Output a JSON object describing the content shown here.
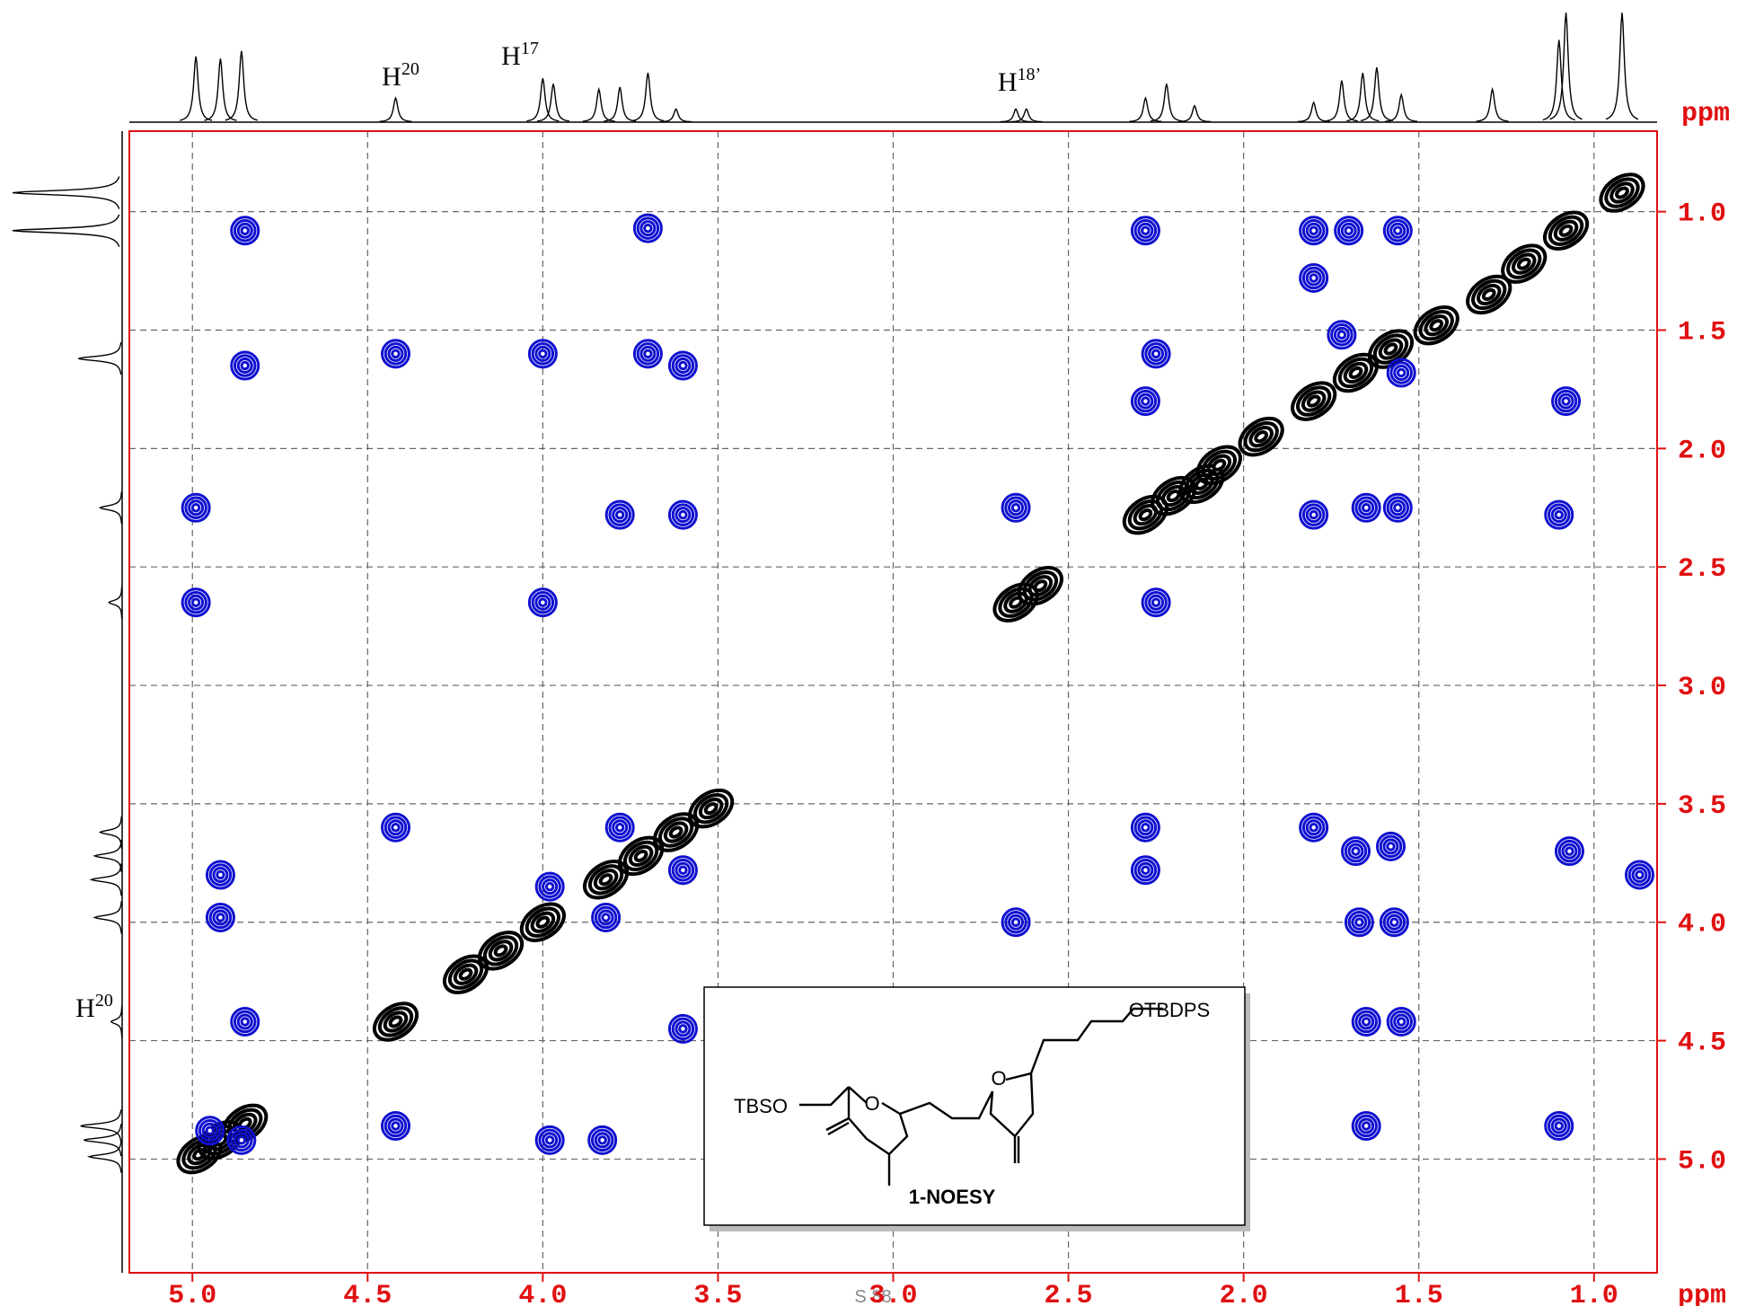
{
  "chart_data": {
    "type": "nmr2d",
    "x_label": "ppm",
    "y_label": "ppm",
    "xlim": [
      5.18,
      0.82
    ],
    "ylim": [
      0.66,
      5.48
    ],
    "xticks": [
      {
        "value": 5,
        "label": "5.0"
      },
      {
        "value": 4.5,
        "label": "4.5"
      },
      {
        "value": 4,
        "label": "4.0"
      },
      {
        "value": 3.5,
        "label": "3.5"
      },
      {
        "value": 3,
        "label": "3.0"
      },
      {
        "value": 2.5,
        "label": "2.5"
      },
      {
        "value": 2,
        "label": "2.0"
      },
      {
        "value": 1.5,
        "label": "1.5"
      },
      {
        "value": 1,
        "label": "1.0"
      }
    ],
    "yticks": [
      {
        "value": 1,
        "label": "1.0"
      },
      {
        "value": 1.5,
        "label": "1.5"
      },
      {
        "value": 2,
        "label": "2.0"
      },
      {
        "value": 2.5,
        "label": "2.5"
      },
      {
        "value": 3,
        "label": "3.0"
      },
      {
        "value": 3.5,
        "label": "3.5"
      },
      {
        "value": 4,
        "label": "4.0"
      },
      {
        "value": 4.5,
        "label": "4.5"
      },
      {
        "value": 5,
        "label": "5.0"
      }
    ],
    "grid": true,
    "series": [
      {
        "name": "diagonal",
        "color": "#000000",
        "x": [
          4.98,
          4.92,
          4.85,
          4.42,
          4.22,
          4.12,
          4.0,
          3.82,
          3.72,
          3.62,
          3.52,
          2.65,
          2.58,
          2.28,
          2.2,
          2.12,
          2.07,
          1.95,
          1.8,
          1.68,
          1.58,
          1.45,
          1.3,
          1.2,
          1.08,
          0.92
        ],
        "values": [
          4.98,
          4.92,
          4.85,
          4.42,
          4.22,
          4.12,
          4.0,
          3.82,
          3.72,
          3.62,
          3.52,
          2.65,
          2.58,
          2.28,
          2.2,
          2.15,
          2.07,
          1.95,
          1.8,
          1.68,
          1.58,
          1.48,
          1.35,
          1.22,
          1.08,
          0.92
        ]
      },
      {
        "name": "cross",
        "color": "#1010d0",
        "x": [
          4.85,
          3.7,
          2.28,
          1.8,
          1.7,
          1.56,
          4.85,
          4.42,
          4.0,
          3.7,
          3.6,
          2.25,
          2.28,
          1.72,
          1.55,
          1.08,
          1.8,
          4.99,
          3.78,
          3.6,
          2.65,
          1.8,
          1.65,
          1.56,
          1.1,
          4.99,
          4.0,
          2.25,
          4.42,
          3.78,
          2.28,
          1.8,
          1.68,
          1.58,
          1.07,
          0.87,
          2.28,
          4.92,
          3.6,
          3.98,
          4.92,
          3.82,
          2.65,
          1.67,
          1.57,
          4.85,
          3.6,
          1.65,
          1.55,
          4.42,
          3.98,
          3.83,
          1.65,
          1.1,
          4.95,
          4.86
        ],
        "values": [
          1.08,
          1.07,
          1.08,
          1.08,
          1.08,
          1.08,
          1.65,
          1.6,
          1.6,
          1.6,
          1.65,
          1.6,
          1.8,
          1.52,
          1.68,
          1.8,
          1.28,
          2.25,
          2.28,
          2.28,
          2.25,
          2.28,
          2.25,
          2.25,
          2.28,
          2.65,
          2.65,
          2.65,
          3.6,
          3.6,
          3.6,
          3.6,
          3.7,
          3.68,
          3.7,
          3.8,
          3.78,
          3.8,
          3.78,
          3.85,
          3.98,
          3.98,
          4.0,
          4.0,
          4.0,
          4.42,
          4.45,
          4.42,
          4.42,
          4.86,
          4.92,
          4.92,
          4.86,
          4.86,
          4.88,
          4.92
        ]
      }
    ],
    "projection_top": {
      "x": [
        4.99,
        4.92,
        4.86,
        4.42,
        4.0,
        3.97,
        3.84,
        3.78,
        3.7,
        3.62,
        2.65,
        2.62,
        2.28,
        2.22,
        2.14,
        1.8,
        1.72,
        1.66,
        1.62,
        1.55,
        1.29,
        1.1,
        1.08,
        0.92
      ],
      "values": [
        60,
        58,
        65,
        22,
        40,
        35,
        30,
        32,
        45,
        12,
        12,
        12,
        22,
        35,
        15,
        18,
        38,
        45,
        50,
        25,
        30,
        75,
        100,
        100
      ]
    },
    "projection_left": {
      "x": [
        0.92,
        1.08,
        1.62,
        2.25,
        2.65,
        3.62,
        3.72,
        3.82,
        3.98,
        4.42,
        4.86,
        4.92,
        4.99
      ],
      "values": [
        100,
        100,
        40,
        20,
        12,
        20,
        25,
        28,
        25,
        10,
        38,
        35,
        30
      ]
    },
    "annotations": [
      {
        "text": "H",
        "sup": "20"
      },
      {
        "text": "H",
        "sup": "17"
      },
      {
        "text": "H",
        "sup": "18’"
      },
      {
        "text": "H",
        "sup": "20"
      }
    ],
    "inset": {
      "labels": [
        "TBSO",
        "O",
        "O",
        "OTBDPS"
      ],
      "caption": "1-NOESY"
    },
    "page_label": "S 88"
  }
}
